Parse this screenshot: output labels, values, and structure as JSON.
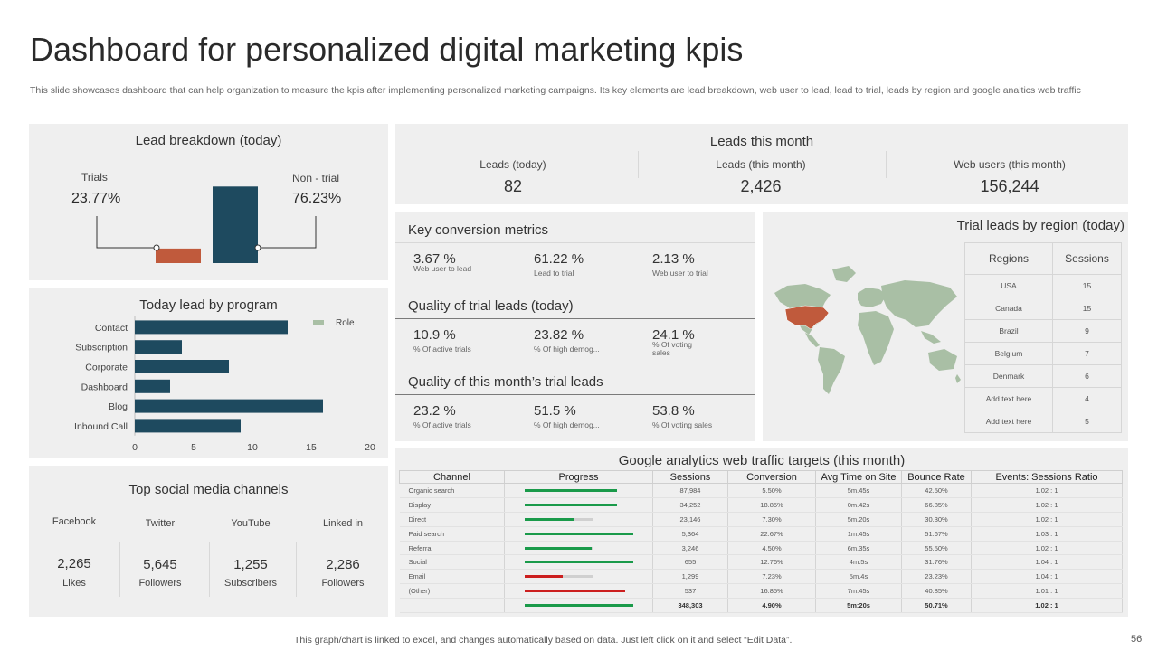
{
  "header": {
    "title": "Dashboard for personalized digital marketing kpis",
    "subtitle": "This slide showcases dashboard that can help organization to measure the kpis after implementing personalized marketing campaigns. Its key elements are lead breakdown, web user to lead, lead to trial, leads by region and google analtics web traffic"
  },
  "lead_breakdown": {
    "title": "Lead breakdown (today)",
    "trials_label": "Trials",
    "trials_value": "23.77%",
    "nontrial_label": "Non - trial",
    "nontrial_value": "76.23%",
    "trials_fraction": 0.2377,
    "nontrial_fraction": 0.7623,
    "colors": {
      "trials": "#c05a3c",
      "nontrial": "#1e4a5f"
    }
  },
  "leads_month": {
    "title": "Leads this month",
    "items": [
      {
        "label": "Leads (today)",
        "value": "82"
      },
      {
        "label": "Leads (this  month)",
        "value": "2,426"
      },
      {
        "label": "Web users  (this  month)",
        "value": "156,244"
      }
    ]
  },
  "program": {
    "title": "Today lead by program",
    "legend": "Role"
  },
  "chart_data": {
    "type": "bar",
    "orientation": "horizontal",
    "categories": [
      "Contact",
      "Subscription",
      "Corporate",
      "Dashboard",
      "Blog",
      "Inbound Call"
    ],
    "values": [
      13,
      4,
      8,
      3,
      16,
      9
    ],
    "series": [
      {
        "name": "Role",
        "values": [
          13,
          4,
          8,
          3,
          16,
          9
        ]
      }
    ],
    "xlim": [
      0,
      20
    ],
    "xticks": [
      "0",
      "5",
      "10",
      "15",
      "20"
    ],
    "legend_position": "top-right",
    "color": "#1e4a5f"
  },
  "conversion": {
    "title": "Key conversion metrics",
    "items": [
      {
        "value": "3.67 %",
        "label": "Web user to lead"
      },
      {
        "value": "61.22 %",
        "label": "Lead to trial"
      },
      {
        "value": "2.13 %",
        "label": "Web user to trial"
      }
    ]
  },
  "quality_today": {
    "title": "Quality of trial leads (today)",
    "items": [
      {
        "value": "10.9 %",
        "label": "% Of active trials"
      },
      {
        "value": "23.82 %",
        "label": "% Of high demog..."
      },
      {
        "value": "24.1 %",
        "label": "% Of voting sales"
      }
    ]
  },
  "quality_month": {
    "title": "Quality of this month’s trial leads",
    "items": [
      {
        "value": "23.2 %",
        "label": "% Of active trials"
      },
      {
        "value": "51.5 %",
        "label": "% Of high demog..."
      },
      {
        "value": "53.8 %",
        "label": "% Of voting sales"
      }
    ]
  },
  "region": {
    "title": "Trial leads by region (today)",
    "headers": [
      "Regions",
      "Sessions"
    ],
    "rows": [
      [
        "USA",
        "15"
      ],
      [
        "Canada",
        "15"
      ],
      [
        "Brazil",
        "9"
      ],
      [
        "Belgium",
        "7"
      ],
      [
        "Denmark",
        "6"
      ],
      [
        "Add text here",
        "4"
      ],
      [
        "Add text here",
        "5"
      ]
    ],
    "map_color": "#a9bfa5",
    "highlight_color": "#c05a3c"
  },
  "social": {
    "title": "Top social media channels",
    "items": [
      {
        "name": "Facebook",
        "value": "2,265",
        "unit": "Likes"
      },
      {
        "name": "Twitter",
        "value": "5,645",
        "unit": "Followers"
      },
      {
        "name": "YouTube",
        "value": "1,255",
        "unit": "Subscribers"
      },
      {
        "name": "Linked in",
        "value": "2,286",
        "unit": "Followers"
      }
    ]
  },
  "ga": {
    "title": "Google analytics web traffic targets (this month)",
    "headers": [
      "Channel",
      "Progress",
      "Sessions",
      "Conversion",
      "Avg Time on Site",
      "Bounce Rate",
      "Events: Sessions Ratio"
    ],
    "rows": [
      {
        "channel": "Organic search",
        "progress": 0.85,
        "progress_color": "#1a9a4a",
        "sessions": "87,984",
        "conversion": "5.50%",
        "avg_time": "5m.45s",
        "bounce": "42.50%",
        "ratio": "1.02  :  1"
      },
      {
        "channel": "Display",
        "progress": 0.85,
        "progress_color": "#1a9a4a",
        "sessions": "34,252",
        "conversion": "18.85%",
        "avg_time": "0m.42s",
        "bounce": "66.85%",
        "ratio": "1.02  :  1"
      },
      {
        "channel": "Direct",
        "progress": 0.46,
        "progress_color": "#1a9a4a",
        "sessions": "23,146",
        "conversion": "7.30%",
        "avg_time": "5m.20s",
        "bounce": "30.30%",
        "ratio": "1.02  :  1"
      },
      {
        "channel": "Paid search",
        "progress": 1.0,
        "progress_color": "#1a9a4a",
        "sessions": "5,364",
        "conversion": "22.67%",
        "avg_time": "1m.45s",
        "bounce": "51.67%",
        "ratio": "1.03  :  1"
      },
      {
        "channel": "Referral",
        "progress": 0.62,
        "progress_color": "#1a9a4a",
        "sessions": "3,246",
        "conversion": "4.50%",
        "avg_time": "6m.35s",
        "bounce": "55.50%",
        "ratio": "1.02  :  1"
      },
      {
        "channel": "Social",
        "progress": 1.0,
        "progress_color": "#1a9a4a",
        "sessions": "655",
        "conversion": "12.76%",
        "avg_time": "4m.5s",
        "bounce": "31.76%",
        "ratio": "1.04  :  1"
      },
      {
        "channel": "Email",
        "progress": 0.35,
        "progress_color": "#cc1f1f",
        "sessions": "1,299",
        "conversion": "7.23%",
        "avg_time": "5m.4s",
        "bounce": "23.23%",
        "ratio": "1.04  :  1"
      },
      {
        "channel": "(Other)",
        "progress": 0.93,
        "progress_color": "#cc1f1f",
        "sessions": "537",
        "conversion": "16.85%",
        "avg_time": "7m.45s",
        "bounce": "40.85%",
        "ratio": "1.01  :  1"
      }
    ],
    "total": {
      "progress": 1.0,
      "progress_color": "#1a9a4a",
      "sessions": "348,303",
      "conversion": "4.90%",
      "avg_time": "5m:20s",
      "bounce": "50.71%",
      "ratio": "1.02  :  1"
    }
  },
  "footer": {
    "note": "This graph/chart is linked to excel,  and changes automatically based on data. Just left click on it and select “Edit Data”.",
    "page": "56"
  }
}
